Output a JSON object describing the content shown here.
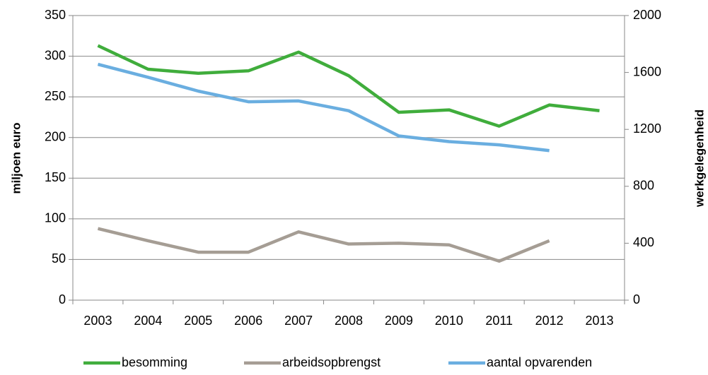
{
  "chart_data": {
    "type": "line",
    "categories": [
      "2003",
      "2004",
      "2005",
      "2006",
      "2007",
      "2008",
      "2009",
      "2010",
      "2011",
      "2012",
      "2013"
    ],
    "ylabel": "miljoen euro",
    "y2label": "werkgelegenheid",
    "ylim": [
      0,
      350
    ],
    "yticks": [
      0,
      50,
      100,
      150,
      200,
      250,
      300,
      350
    ],
    "y2lim": [
      0,
      2000
    ],
    "y2ticks": [
      0,
      400,
      800,
      1200,
      1600,
      2000
    ],
    "grid": true,
    "legend": "bottom",
    "series": [
      {
        "name": "besomming",
        "color": "#40ad3c",
        "values": [
          313,
          284,
          279,
          282,
          305,
          276,
          231,
          234,
          214,
          240,
          233
        ]
      },
      {
        "name": "arbeidsopbrengst",
        "color": "#a59d94",
        "values": [
          88,
          73,
          59,
          59,
          84,
          69,
          70,
          68,
          48,
          73,
          null
        ]
      },
      {
        "name": "aantal opvarenden",
        "color": "#6aaee0",
        "axis": "y2",
        "values": [
          1657,
          1566,
          1469,
          1394,
          1400,
          1331,
          1154,
          1114,
          1091,
          1051,
          null
        ]
      }
    ]
  }
}
